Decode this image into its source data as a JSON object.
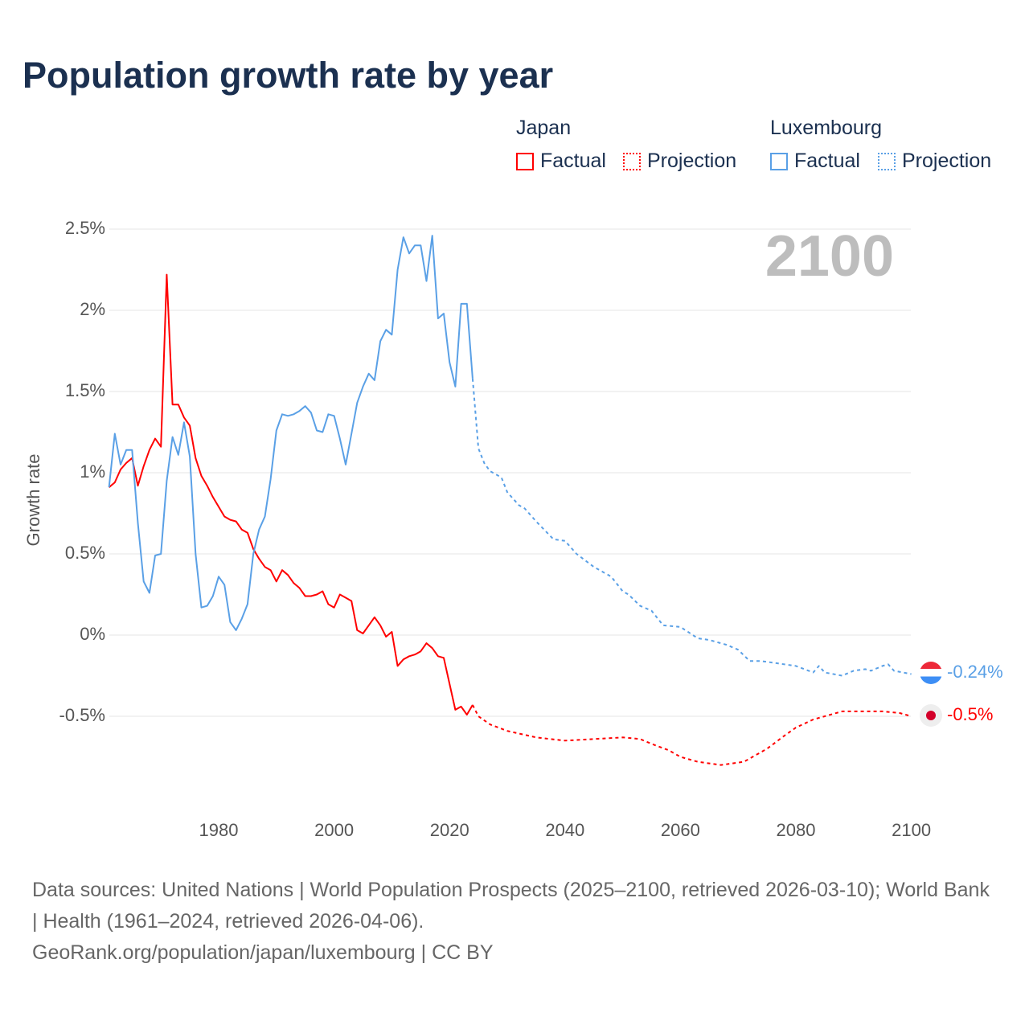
{
  "title": "Population growth rate by year",
  "legend": {
    "groups": [
      {
        "name": "Japan",
        "factual": "Factual",
        "projection": "Projection",
        "color": "#ff0000"
      },
      {
        "name": "Luxembourg",
        "factual": "Factual",
        "projection": "Projection",
        "color": "#5aa0e6"
      }
    ]
  },
  "current_year": "2100",
  "end_labels": {
    "luxembourg": "-0.24%",
    "japan": "-0.5%"
  },
  "footer": {
    "sources": "Data sources: United Nations | World Population Prospects (2025–2100, retrieved 2026-03-10); World Bank | Health (1961–2024, retrieved 2026-04-06).",
    "credit": "GeoRank.org/population/japan/luxembourg | CC BY"
  },
  "chart_data": {
    "type": "line",
    "title": "Population growth rate by year",
    "xlabel": "",
    "ylabel": "Growth rate",
    "xlim": [
      1961,
      2100
    ],
    "ylim": [
      -1.0,
      2.5
    ],
    "grid": true,
    "legend_placement": "top-right",
    "x_ticks": [
      1980,
      2000,
      2020,
      2040,
      2060,
      2080,
      2100
    ],
    "x_tick_labels": [
      "1980",
      "2000",
      "2020",
      "2040",
      "2060",
      "2080",
      "2100"
    ],
    "y_ticks": [
      2.5,
      2,
      1.5,
      1,
      0.5,
      0,
      -0.5
    ],
    "y_tick_labels": [
      "2.5%",
      "2%",
      "1.5%",
      "1%",
      "0.5%",
      "0%",
      "-0.5%"
    ],
    "series": [
      {
        "name": "Japan Factual",
        "color": "#ff0000",
        "dashed": false,
        "x": [
          1961,
          1962,
          1963,
          1964,
          1965,
          1966,
          1967,
          1968,
          1969,
          1970,
          1971,
          1972,
          1973,
          1974,
          1975,
          1976,
          1977,
          1978,
          1979,
          1980,
          1981,
          1982,
          1983,
          1984,
          1985,
          1986,
          1987,
          1988,
          1989,
          1990,
          1991,
          1992,
          1993,
          1994,
          1995,
          1996,
          1997,
          1998,
          1999,
          2000,
          2001,
          2002,
          2003,
          2004,
          2005,
          2006,
          2007,
          2008,
          2009,
          2010,
          2011,
          2012,
          2013,
          2014,
          2015,
          2016,
          2017,
          2018,
          2019,
          2020,
          2021,
          2022,
          2023,
          2024
        ],
        "y": [
          0.91,
          0.94,
          1.02,
          1.06,
          1.09,
          0.92,
          1.04,
          1.14,
          1.21,
          1.16,
          2.22,
          1.42,
          1.42,
          1.34,
          1.29,
          1.09,
          0.98,
          0.92,
          0.85,
          0.79,
          0.73,
          0.71,
          0.7,
          0.65,
          0.63,
          0.53,
          0.47,
          0.42,
          0.4,
          0.33,
          0.4,
          0.37,
          0.32,
          0.29,
          0.24,
          0.24,
          0.25,
          0.27,
          0.19,
          0.17,
          0.25,
          0.23,
          0.21,
          0.03,
          0.01,
          0.06,
          0.11,
          0.06,
          -0.01,
          0.02,
          -0.19,
          -0.15,
          -0.13,
          -0.12,
          -0.1,
          -0.05,
          -0.08,
          -0.13,
          -0.14,
          -0.3,
          -0.46,
          -0.44,
          -0.49,
          -0.43
        ]
      },
      {
        "name": "Japan Projection",
        "color": "#ff0000",
        "dashed": true,
        "x": [
          2024,
          2025,
          2027,
          2030,
          2035,
          2040,
          2045,
          2050,
          2053,
          2055,
          2058,
          2060,
          2063,
          2067,
          2071,
          2075,
          2078,
          2080,
          2083,
          2085,
          2088,
          2090,
          2095,
          2098,
          2100
        ],
        "y": [
          -0.43,
          -0.5,
          -0.55,
          -0.59,
          -0.63,
          -0.65,
          -0.64,
          -0.63,
          -0.64,
          -0.67,
          -0.71,
          -0.75,
          -0.78,
          -0.8,
          -0.78,
          -0.7,
          -0.62,
          -0.57,
          -0.52,
          -0.5,
          -0.47,
          -0.47,
          -0.47,
          -0.48,
          -0.5
        ]
      },
      {
        "name": "Luxembourg Factual",
        "color": "#5aa0e6",
        "dashed": false,
        "x": [
          1961,
          1962,
          1963,
          1964,
          1965,
          1966,
          1967,
          1968,
          1969,
          1970,
          1971,
          1972,
          1973,
          1974,
          1975,
          1976,
          1977,
          1978,
          1979,
          1980,
          1981,
          1982,
          1983,
          1984,
          1985,
          1986,
          1987,
          1988,
          1989,
          1990,
          1991,
          1992,
          1993,
          1994,
          1995,
          1996,
          1997,
          1998,
          1999,
          2000,
          2001,
          2002,
          2003,
          2004,
          2005,
          2006,
          2007,
          2008,
          2009,
          2010,
          2011,
          2012,
          2013,
          2014,
          2015,
          2016,
          2017,
          2018,
          2019,
          2020,
          2021,
          2022,
          2023,
          2024
        ],
        "y": [
          0.91,
          1.24,
          1.05,
          1.14,
          1.14,
          0.69,
          0.33,
          0.26,
          0.49,
          0.5,
          0.95,
          1.22,
          1.11,
          1.31,
          1.1,
          0.5,
          0.17,
          0.18,
          0.24,
          0.36,
          0.31,
          0.08,
          0.03,
          0.1,
          0.19,
          0.5,
          0.65,
          0.73,
          0.96,
          1.26,
          1.36,
          1.35,
          1.36,
          1.38,
          1.41,
          1.37,
          1.26,
          1.25,
          1.36,
          1.35,
          1.21,
          1.05,
          1.24,
          1.43,
          1.53,
          1.61,
          1.57,
          1.81,
          1.88,
          1.85,
          2.25,
          2.45,
          2.35,
          2.4,
          2.4,
          2.18,
          2.46,
          1.95,
          1.98,
          1.68,
          1.53,
          2.04,
          2.04,
          1.58
        ]
      },
      {
        "name": "Luxembourg Projection",
        "color": "#5aa0e6",
        "dashed": true,
        "x": [
          2024,
          2025,
          2026,
          2027,
          2028,
          2029,
          2030,
          2032,
          2033,
          2035,
          2038,
          2040,
          2042,
          2045,
          2048,
          2050,
          2051,
          2053,
          2055,
          2057,
          2060,
          2063,
          2065,
          2068,
          2070,
          2072,
          2074,
          2076,
          2080,
          2083,
          2084,
          2085,
          2088,
          2090,
          2092,
          2093,
          2095,
          2096,
          2097,
          2100
        ],
        "y": [
          1.58,
          1.15,
          1.06,
          1.01,
          0.99,
          0.97,
          0.88,
          0.8,
          0.78,
          0.7,
          0.59,
          0.58,
          0.5,
          0.42,
          0.36,
          0.27,
          0.25,
          0.18,
          0.15,
          0.06,
          0.05,
          -0.02,
          -0.03,
          -0.06,
          -0.09,
          -0.16,
          -0.16,
          -0.17,
          -0.19,
          -0.23,
          -0.19,
          -0.23,
          -0.25,
          -0.22,
          -0.21,
          -0.22,
          -0.19,
          -0.18,
          -0.22,
          -0.24
        ]
      }
    ]
  }
}
